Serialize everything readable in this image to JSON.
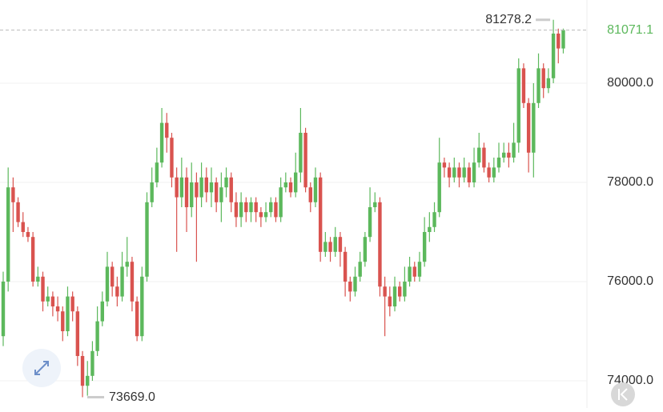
{
  "chart_data": {
    "type": "candlestick",
    "up_color": "#5cb85c",
    "down_color": "#d9534f",
    "grid": true,
    "ylim": [
      73452,
      81677
    ],
    "yticks": [
      {
        "value": 74000,
        "label": "74000.0"
      },
      {
        "value": 76000,
        "label": "76000.0"
      },
      {
        "value": 78000,
        "label": "78000.0"
      },
      {
        "value": 80000,
        "label": "80000.0"
      }
    ],
    "low_value_label": "73669.0",
    "open": [
      74900,
      76000,
      77900,
      77600,
      77200,
      77000,
      76900,
      76000,
      76100,
      75600,
      75700,
      75500,
      75400,
      75000,
      75700,
      75400,
      74500,
      73900,
      74100,
      74600,
      75200,
      75600,
      76300,
      75900,
      75700,
      76300,
      76400,
      75600,
      74900,
      76100,
      77600,
      78000,
      78400,
      79200,
      78900,
      78100,
      77700,
      78100,
      77500,
      78000,
      77700,
      78100,
      77800,
      78000,
      77600,
      77900,
      78100,
      77600,
      77300,
      77600,
      77400,
      77600,
      77400,
      77300,
      77400,
      77600,
      77300,
      77900,
      78000,
      77800,
      78200,
      79000,
      77900,
      77600,
      78100,
      76600,
      76800,
      76600,
      76900,
      76600,
      76000,
      75800,
      76100,
      76400,
      76900,
      77500,
      77600,
      75900,
      75700,
      75500,
      75900,
      75700,
      76000,
      76300,
      76100,
      76400,
      77000,
      77100,
      77400,
      78400,
      78300,
      78100,
      78300,
      78100,
      78300,
      78000,
      78400,
      78700,
      78300,
      78100,
      78300,
      78500,
      78600,
      78500,
      78800,
      80300,
      79600,
      78600,
      79600,
      80300,
      79900,
      80100,
      81000,
      80700
    ],
    "high": [
      76200,
      78300,
      78100,
      77700,
      77400,
      77100,
      77000,
      76300,
      76200,
      75900,
      75800,
      75700,
      75500,
      75900,
      75800,
      75500,
      74600,
      74400,
      74800,
      75500,
      75800,
      76600,
      76400,
      76100,
      76600,
      76900,
      76500,
      75700,
      76300,
      77800,
      78300,
      78700,
      79500,
      79400,
      79000,
      78300,
      78500,
      78300,
      78400,
      78200,
      78400,
      78300,
      78300,
      78100,
      78200,
      78300,
      78200,
      77800,
      77800,
      77700,
      77700,
      77700,
      77500,
      77600,
      77700,
      77700,
      78100,
      78200,
      78100,
      78600,
      79500,
      79100,
      78000,
      78300,
      78200,
      77000,
      76900,
      77100,
      77000,
      76700,
      76100,
      76300,
      76600,
      77000,
      77900,
      77800,
      77700,
      76100,
      75900,
      76100,
      76000,
      76300,
      76500,
      76400,
      76600,
      77300,
      77400,
      77600,
      78900,
      78500,
      78400,
      78500,
      78400,
      78500,
      78400,
      78700,
      79000,
      78800,
      78400,
      78500,
      78800,
      78800,
      78800,
      79200,
      80500,
      80400,
      79700,
      80000,
      80600,
      80400,
      80300,
      81278.2,
      81100,
      81100
    ],
    "low": [
      74700,
      75800,
      77000,
      77100,
      76900,
      76800,
      75900,
      75900,
      75400,
      75500,
      75300,
      75200,
      74800,
      74900,
      75200,
      74300,
      73669,
      73700,
      74000,
      74500,
      75100,
      75500,
      75700,
      75500,
      75600,
      76100,
      75400,
      74800,
      74800,
      76000,
      77500,
      77900,
      78300,
      78600,
      77900,
      76600,
      77500,
      77000,
      77300,
      76400,
      77500,
      77600,
      77500,
      77400,
      77200,
      77700,
      77400,
      77100,
      77100,
      77200,
      77200,
      77200,
      77100,
      77200,
      77300,
      77200,
      77200,
      77800,
      77700,
      77700,
      78000,
      77800,
      77400,
      77500,
      76400,
      76500,
      76400,
      76500,
      76300,
      75700,
      75600,
      75700,
      76000,
      76300,
      76800,
      77400,
      75700,
      74900,
      75300,
      75400,
      75600,
      75600,
      75900,
      76000,
      76000,
      76300,
      76800,
      77000,
      77300,
      78100,
      77900,
      78000,
      77900,
      78000,
      77900,
      77900,
      78300,
      78200,
      78000,
      78000,
      78200,
      78400,
      78300,
      78400,
      78600,
      79500,
      78200,
      78100,
      79500,
      79700,
      79800,
      80000,
      80400,
      80600
    ],
    "close": [
      76000,
      77900,
      77600,
      77200,
      77000,
      76900,
      76000,
      76100,
      75600,
      75700,
      75500,
      75400,
      75000,
      75700,
      75400,
      74500,
      73900,
      74100,
      74600,
      75200,
      75600,
      76300,
      75900,
      75700,
      76300,
      76400,
      75600,
      74900,
      76100,
      77600,
      78000,
      78400,
      79200,
      78900,
      78100,
      77700,
      78100,
      77500,
      78000,
      77700,
      78100,
      77800,
      78000,
      77600,
      77900,
      78100,
      77600,
      77300,
      77600,
      77400,
      77600,
      77400,
      77300,
      77400,
      77600,
      77300,
      77900,
      78000,
      77800,
      78200,
      79000,
      77900,
      77600,
      78100,
      76600,
      76800,
      76600,
      76900,
      76600,
      76000,
      75800,
      76100,
      76400,
      76900,
      77500,
      77600,
      75900,
      75700,
      75500,
      75900,
      75700,
      76000,
      76300,
      76100,
      76400,
      77000,
      77100,
      77400,
      78400,
      78300,
      78100,
      78300,
      78100,
      78300,
      78000,
      78400,
      78700,
      78300,
      78100,
      78300,
      78500,
      78600,
      78500,
      78800,
      80300,
      79600,
      78600,
      79600,
      80300,
      79900,
      80100,
      81000,
      80700,
      81071.1
    ]
  }
}
